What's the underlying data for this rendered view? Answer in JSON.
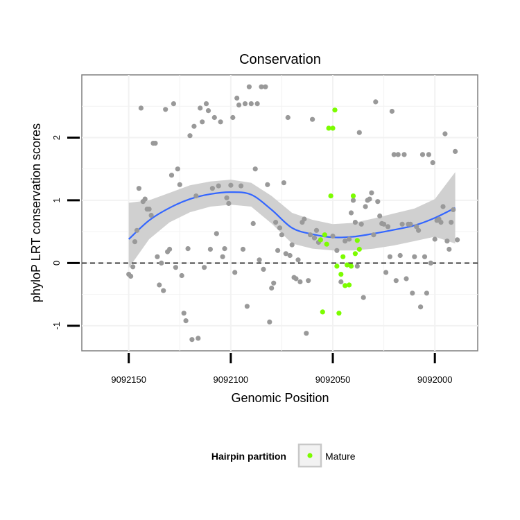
{
  "chart_data": {
    "type": "scatter",
    "title": "Conservation",
    "xlabel": "Genomic Position",
    "ylabel": "phyloP LRT conservation scores",
    "x_reversed": true,
    "xlim": [
      9092173,
      9091979
    ],
    "ylim": [
      -1.4,
      3.0
    ],
    "xticks": [
      9092150,
      9092100,
      9092050,
      9092000
    ],
    "xtick_labels": [
      "9092150",
      "9092100",
      "9092050",
      "9092000"
    ],
    "yticks": [
      -1,
      0,
      1,
      2
    ],
    "ytick_labels": [
      "-1",
      "0",
      "1",
      "2"
    ],
    "grid": true,
    "reference_line": {
      "y": 0,
      "style": "dashed"
    },
    "legend": {
      "title": "Hairpin partition",
      "position": "bottom",
      "entries": [
        {
          "label": "Mature",
          "color": "#7CFC00"
        }
      ]
    },
    "series": [
      {
        "color": "#999999",
        "points": [
          [
            9092150,
            -0.18
          ],
          [
            9092149,
            -0.21
          ],
          [
            9092148,
            -0.06
          ],
          [
            9092147,
            0.34
          ],
          [
            9092146,
            0.52
          ],
          [
            9092145,
            1.19
          ],
          [
            9092144,
            2.47
          ],
          [
            9092143,
            0.98
          ],
          [
            9092142,
            1.02
          ],
          [
            9092141,
            0.86
          ],
          [
            9092140,
            0.86
          ],
          [
            9092139,
            0.76
          ],
          [
            9092138,
            1.91
          ],
          [
            9092137,
            1.91
          ],
          [
            9092136,
            0.1
          ],
          [
            9092135,
            -0.35
          ],
          [
            9092134,
            0.0
          ],
          [
            9092133,
            -0.44
          ],
          [
            9092132,
            2.45
          ],
          [
            9092131,
            0.18
          ],
          [
            9092130,
            0.22
          ],
          [
            9092129,
            1.4
          ],
          [
            9092128,
            2.54
          ],
          [
            9092127,
            -0.07
          ],
          [
            9092126,
            1.5
          ],
          [
            9092125,
            1.25
          ],
          [
            9092124,
            -0.2
          ],
          [
            9092123,
            -0.8
          ],
          [
            9092122,
            -0.92
          ],
          [
            9092121,
            0.23
          ],
          [
            9092120,
            2.03
          ],
          [
            9092119,
            -1.22
          ],
          [
            9092118,
            2.18
          ],
          [
            9092117,
            1.07
          ],
          [
            9092116,
            -1.2
          ],
          [
            9092115,
            2.47
          ],
          [
            9092114,
            2.25
          ],
          [
            9092113,
            -0.07
          ],
          [
            9092112,
            2.54
          ],
          [
            9092111,
            2.43
          ],
          [
            9092110,
            0.22
          ],
          [
            9092109,
            1.19
          ],
          [
            9092108,
            2.32
          ],
          [
            9092107,
            0.47
          ],
          [
            9092106,
            1.23
          ],
          [
            9092105,
            2.25
          ],
          [
            9092104,
            0.1
          ],
          [
            9092103,
            0.23
          ],
          [
            9092102,
            1.04
          ],
          [
            9092101,
            0.95
          ],
          [
            9092100,
            1.24
          ],
          [
            9092099,
            2.32
          ],
          [
            9092098,
            -0.15
          ],
          [
            9092097,
            2.63
          ],
          [
            9092096,
            2.52
          ],
          [
            9092095,
            1.23
          ],
          [
            9092094,
            0.22
          ],
          [
            9092093,
            2.54
          ],
          [
            9092092,
            -0.69
          ],
          [
            9092091,
            2.81
          ],
          [
            9092090,
            2.54
          ],
          [
            9092089,
            0.63
          ],
          [
            9092088,
            1.5
          ],
          [
            9092087,
            2.54
          ],
          [
            9092086,
            0.05
          ],
          [
            9092085,
            2.81
          ],
          [
            9092084,
            -0.1
          ],
          [
            9092083,
            2.81
          ],
          [
            9092082,
            1.25
          ],
          [
            9092081,
            -0.94
          ],
          [
            9092080,
            -0.4
          ],
          [
            9092079,
            -0.32
          ],
          [
            9092078,
            0.65
          ],
          [
            9092077,
            0.2
          ],
          [
            9092076,
            0.56
          ],
          [
            9092075,
            0.45
          ],
          [
            9092074,
            1.28
          ],
          [
            9092073,
            0.15
          ],
          [
            9092072,
            2.32
          ],
          [
            9092071,
            0.12
          ],
          [
            9092070,
            0.29
          ],
          [
            9092069,
            -0.23
          ],
          [
            9092068,
            -0.25
          ],
          [
            9092067,
            0.05
          ],
          [
            9092066,
            -0.3
          ],
          [
            9092065,
            0.65
          ],
          [
            9092064,
            0.7
          ],
          [
            9092063,
            -1.12
          ],
          [
            9092062,
            -0.28
          ],
          [
            9092061,
            0.45
          ],
          [
            9092060,
            2.29
          ],
          [
            9092059,
            0.4
          ],
          [
            9092058,
            0.52
          ],
          [
            9092057,
            0.33
          ],
          [
            9092050,
            0.43
          ],
          [
            9092048,
            0.2
          ],
          [
            9092046,
            -0.3
          ],
          [
            9092044,
            0.35
          ],
          [
            9092042,
            0.38
          ],
          [
            9092041,
            0.8
          ],
          [
            9092040,
            1.0
          ],
          [
            9092039,
            0.65
          ],
          [
            9092038,
            -0.05
          ],
          [
            9092037,
            2.08
          ],
          [
            9092036,
            0.62
          ],
          [
            9092035,
            -0.55
          ],
          [
            9092034,
            0.9
          ],
          [
            9092033,
            1.0
          ],
          [
            9092032,
            1.02
          ],
          [
            9092031,
            1.12
          ],
          [
            9092030,
            0.45
          ],
          [
            9092029,
            2.57
          ],
          [
            9092028,
            0.98
          ],
          [
            9092027,
            0.75
          ],
          [
            9092026,
            0.63
          ],
          [
            9092025,
            0.62
          ],
          [
            9092024,
            -0.15
          ],
          [
            9092023,
            0.58
          ],
          [
            9092022,
            0.1
          ],
          [
            9092021,
            2.42
          ],
          [
            9092020,
            1.73
          ],
          [
            9092019,
            -0.28
          ],
          [
            9092018,
            1.73
          ],
          [
            9092017,
            0.12
          ],
          [
            9092016,
            0.62
          ],
          [
            9092015,
            1.73
          ],
          [
            9092014,
            -0.25
          ],
          [
            9092013,
            0.62
          ],
          [
            9092012,
            0.62
          ],
          [
            9092011,
            -0.48
          ],
          [
            9092010,
            0.1
          ],
          [
            9092009,
            0.58
          ],
          [
            9092008,
            0.52
          ],
          [
            9092007,
            -0.7
          ],
          [
            9092006,
            1.73
          ],
          [
            9092005,
            0.1
          ],
          [
            9092004,
            -0.48
          ],
          [
            9092003,
            1.73
          ],
          [
            9092002,
            0.0
          ],
          [
            9092001,
            1.6
          ],
          [
            9092000,
            0.38
          ],
          [
            9091999,
            0.68
          ],
          [
            9091998,
            0.7
          ],
          [
            9091997,
            0.65
          ],
          [
            9091996,
            0.9
          ],
          [
            9091995,
            2.06
          ],
          [
            9091994,
            0.35
          ],
          [
            9091993,
            0.22
          ],
          [
            9091992,
            0.65
          ],
          [
            9091991,
            0.85
          ],
          [
            9091990,
            1.78
          ],
          [
            9091989,
            0.37
          ]
        ]
      },
      {
        "name": "Mature",
        "color": "#7CFC00",
        "points": [
          [
            9092056,
            0.37
          ],
          [
            9092055,
            -0.78
          ],
          [
            9092054,
            0.45
          ],
          [
            9092053,
            0.3
          ],
          [
            9092052,
            2.15
          ],
          [
            9092051,
            1.07
          ],
          [
            9092050,
            2.15
          ],
          [
            9092049,
            2.44
          ],
          [
            9092048,
            -0.05
          ],
          [
            9092047,
            -0.8
          ],
          [
            9092046,
            -0.18
          ],
          [
            9092045,
            0.1
          ],
          [
            9092044,
            -0.36
          ],
          [
            9092043,
            -0.03
          ],
          [
            9092042,
            -0.35
          ],
          [
            9092041,
            -0.05
          ],
          [
            9092040,
            1.07
          ],
          [
            9092039,
            0.15
          ],
          [
            9092038,
            0.36
          ],
          [
            9092037,
            0.22
          ]
        ]
      }
    ],
    "smooth": {
      "color": "#3366FF",
      "band_color": "#D0D0D0",
      "x": [
        9092150,
        9092140,
        9092130,
        9092120,
        9092110,
        9092100,
        9092090,
        9092080,
        9092070,
        9092060,
        9092050,
        9092040,
        9092030,
        9092020,
        9092010,
        9092000,
        9091990
      ],
      "y": [
        0.38,
        0.68,
        0.88,
        1.02,
        1.1,
        1.13,
        1.09,
        0.85,
        0.56,
        0.46,
        0.41,
        0.42,
        0.47,
        0.53,
        0.6,
        0.72,
        0.88
      ],
      "lower": [
        -0.08,
        0.38,
        0.65,
        0.81,
        0.9,
        0.93,
        0.9,
        0.63,
        0.31,
        0.23,
        0.2,
        0.2,
        0.23,
        0.28,
        0.35,
        0.42,
        0.31
      ],
      "upper": [
        0.96,
        1.0,
        1.12,
        1.24,
        1.3,
        1.33,
        1.28,
        1.07,
        0.8,
        0.69,
        0.62,
        0.64,
        0.71,
        0.79,
        0.87,
        1.02,
        1.45
      ]
    }
  }
}
